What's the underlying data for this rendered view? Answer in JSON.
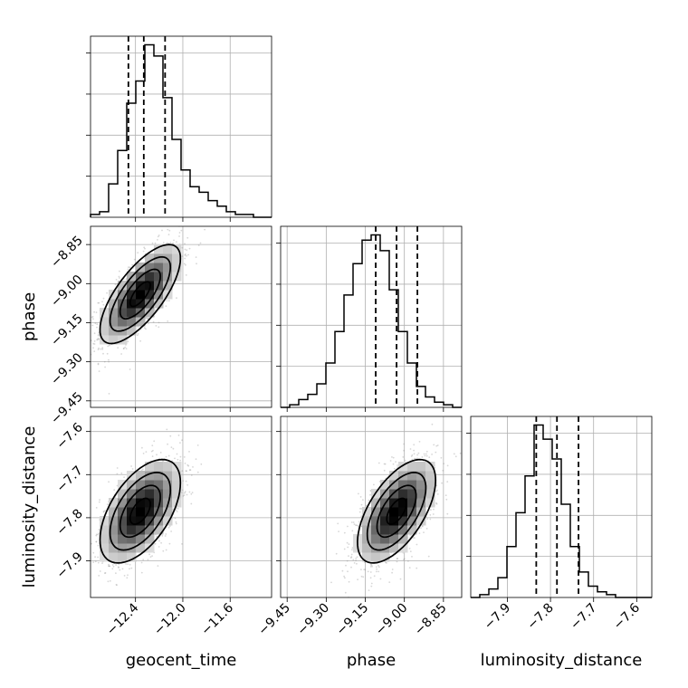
{
  "chart_data": {
    "type": "corner",
    "parameters": [
      "geocent_time",
      "phase",
      "luminosity_distance"
    ],
    "axis_labels": {
      "x": [
        "geocent_time",
        "phase",
        "luminosity_distance"
      ],
      "y": [
        "",
        "phase",
        "luminosity_distance"
      ]
    },
    "ranges": {
      "geocent_time": [
        -12.78,
        -11.25
      ],
      "phase": [
        -9.475,
        -8.78
      ],
      "luminosity_distance": [
        -7.985,
        -7.565
      ]
    },
    "ticks": {
      "geocent_time": [
        -12.4,
        -12.0,
        -11.6
      ],
      "phase": [
        -9.45,
        -9.3,
        -9.15,
        -9.0,
        -8.85
      ],
      "luminosity_distance": [
        -7.9,
        -7.8,
        -7.7,
        -7.6
      ]
    },
    "tick_labels": {
      "geocent_time": [
        "−12.4",
        "−12.0",
        "−11.6"
      ],
      "phase": [
        "−9.45",
        "−9.30",
        "−9.15",
        "−9.00",
        "−8.85"
      ],
      "luminosity_distance": [
        "−7.9",
        "−7.8",
        "−7.7",
        "−7.6"
      ]
    },
    "quantiles": {
      "geocent_time": [
        -12.46,
        -12.33,
        -12.15
      ],
      "phase": [
        -9.11,
        -9.03,
        -8.95
      ],
      "luminosity_distance": [
        -7.833,
        -7.785,
        -7.735
      ]
    },
    "histograms": {
      "geocent_time": {
        "edges_range": [
          -12.78,
          -11.25
        ],
        "bins": 20,
        "counts": [
          1,
          2,
          12,
          24,
          41,
          49,
          62,
          58,
          43,
          28,
          17,
          11,
          9,
          6,
          4,
          2,
          1,
          1,
          0,
          0
        ]
      },
      "phase": {
        "edges_range": [
          -9.475,
          -8.78
        ],
        "bins": 20,
        "counts": [
          0,
          1,
          3,
          5,
          9,
          17,
          29,
          43,
          55,
          64,
          66,
          60,
          45,
          29,
          17,
          8,
          4,
          2,
          1,
          0
        ]
      },
      "luminosity_distance": {
        "edges_range": [
          -7.985,
          -7.565
        ],
        "bins": 20,
        "counts": [
          0,
          1,
          3,
          7,
          18,
          30,
          43,
          61,
          56,
          49,
          33,
          18,
          9,
          4,
          2,
          1,
          0,
          0,
          0,
          0
        ]
      }
    },
    "joint": {
      "phase|geocent_time": {
        "mean": [
          -12.36,
          -9.04
        ],
        "std": [
          0.17,
          0.095
        ],
        "corr": 0.72
      },
      "luminosity_distance|geocent_time": {
        "mean": [
          -12.36,
          -7.785
        ],
        "std": [
          0.17,
          0.06
        ],
        "corr": 0.55
      },
      "luminosity_distance|phase": {
        "mean": [
          -9.03,
          -7.785
        ],
        "std": [
          0.075,
          0.06
        ],
        "corr": 0.6
      }
    },
    "colors": {
      "lines": "#000000",
      "grid": "#b0b0b0",
      "points": "#8c8c8c",
      "density_dark": "#000000"
    },
    "grid": true
  }
}
